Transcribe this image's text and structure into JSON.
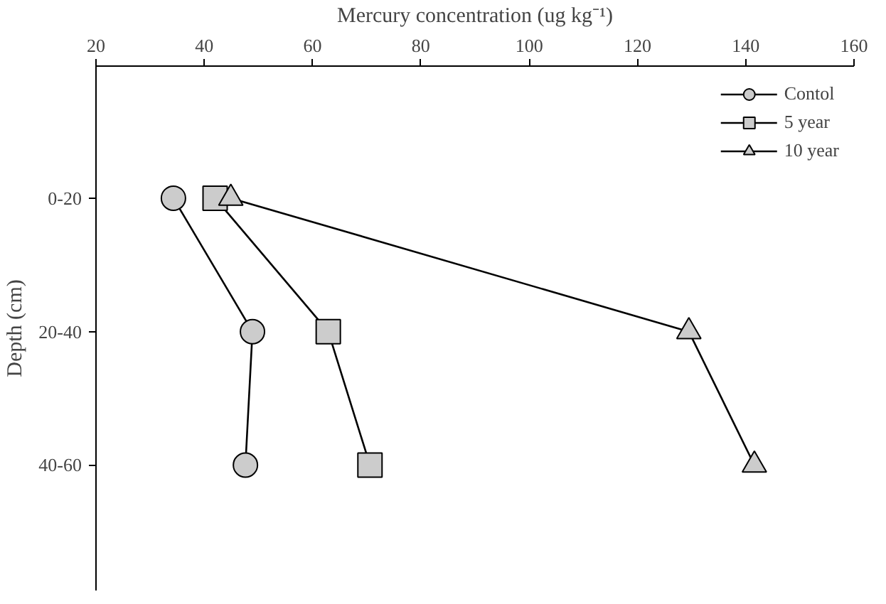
{
  "chart_data": {
    "type": "line",
    "orientation": "horizontal",
    "xlabel": "Mercury concentration (ug kg⁻¹)",
    "ylabel": "Depth (cm)",
    "categories": [
      "0-20",
      "20-40",
      "40-60"
    ],
    "series": [
      {
        "name": "Contol",
        "color": "#000000",
        "marker": "circle",
        "values": [
          34.3,
          48.9,
          47.6
        ]
      },
      {
        "name": "5 year",
        "color": "#000000",
        "marker": "square",
        "values": [
          42.0,
          62.9,
          70.6
        ]
      },
      {
        "name": "10 year",
        "color": "#000000",
        "marker": "triangle",
        "values": [
          44.9,
          129.5,
          141.6
        ]
      }
    ],
    "xlim": [
      20,
      160
    ],
    "xticks": [
      20,
      40,
      60,
      80,
      100,
      120,
      140,
      160
    ],
    "grid": false,
    "legend": "top right",
    "line_style": "solid"
  }
}
